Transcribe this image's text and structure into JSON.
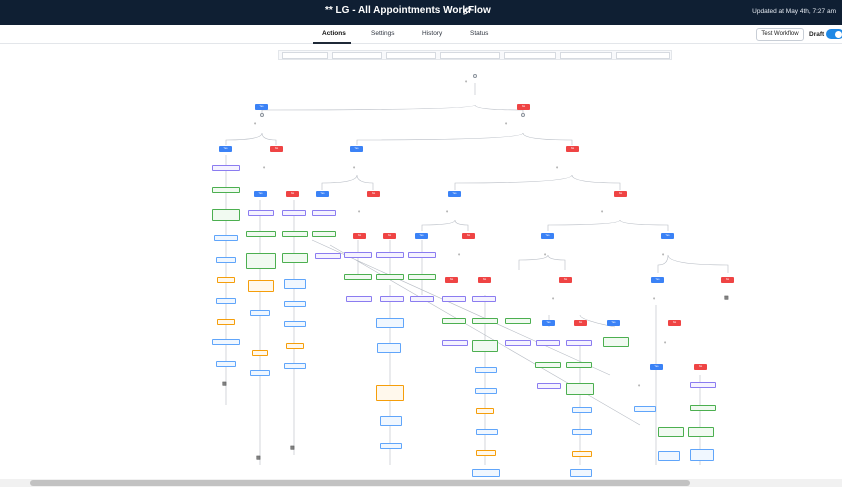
{
  "header": {
    "title": "** LG - All Appointments WorkFlow",
    "updated": "Updated at May 4th, 7:27 am"
  },
  "tabs": [
    {
      "label": "Actions",
      "active": true
    },
    {
      "label": "Settings",
      "active": false
    },
    {
      "label": "History",
      "active": false
    },
    {
      "label": "Status",
      "active": false
    }
  ],
  "toolbar": {
    "test_label": "Test Workflow",
    "draft_label": "Draft",
    "draft_on": true
  },
  "colors": {
    "header_bg": "#0f1f33",
    "yes": "#3b82f6",
    "no": "#ef4444",
    "accent": "#1e88e5"
  },
  "canvas": {
    "yes_label": "Yes",
    "no_label": "No"
  }
}
